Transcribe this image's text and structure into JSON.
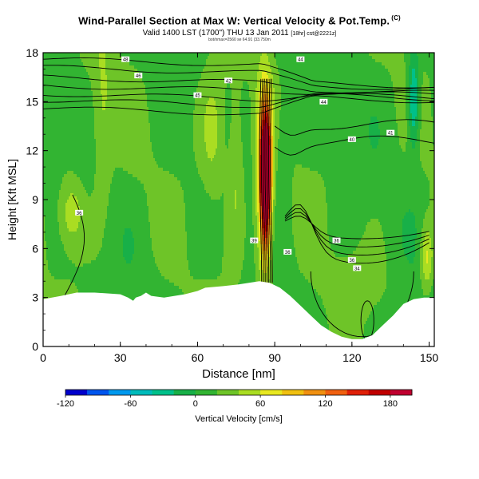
{
  "header": {
    "title": "Wind-Parallel Section at Max W: Vertical Velocity & Pot.Temp.",
    "copyright": "(C)",
    "subtitle_main": "Valid 1400 LST (1700\") THU 13 Jan 2011",
    "subtitle_extra": "[18hr] cst@2221z]",
    "subtitle_small": "bot/nmax=2560 se 64.91 (33.750m"
  },
  "chart_data": {
    "type": "heatmap",
    "title": "Wind-Parallel Section at Max W: Vertical Velocity & Pot.Temp.",
    "xlabel": "Distance [nm]",
    "ylabel": "Height [Kft MSL]",
    "xlim": [
      0,
      152
    ],
    "ylim": [
      0,
      18
    ],
    "xticks": [
      0,
      30,
      60,
      90,
      120,
      150
    ],
    "yticks": [
      0,
      3,
      6,
      9,
      12,
      15,
      18
    ],
    "xtick_labels": [
      "0",
      "30",
      "60",
      "90",
      "120",
      "150"
    ],
    "ytick_labels": [
      "0",
      "3",
      "6",
      "9",
      "12",
      "15",
      "18"
    ],
    "colorbar": {
      "label": "Vertical Velocity [cm/s]",
      "min": -120,
      "max": 200,
      "step": 20,
      "tick_values": [
        -120,
        -60,
        0,
        60,
        120,
        180
      ],
      "tick_labels": [
        "-120",
        "-60",
        "0",
        "60",
        "120",
        "180"
      ],
      "colors": [
        "#0000cc",
        "#0055ee",
        "#0099ee",
        "#00bbbb",
        "#00c08a",
        "#18b048",
        "#32b432",
        "#6ec428",
        "#aadd22",
        "#e8e820",
        "#f0c010",
        "#f09010",
        "#f06010",
        "#e02008",
        "#c00000",
        "#c00030"
      ]
    },
    "terrain": {
      "x": [
        0,
        7,
        13,
        20,
        30,
        33,
        35,
        36,
        38,
        40,
        42,
        47,
        55,
        60,
        63,
        70,
        76,
        80,
        84,
        88,
        92,
        96,
        100,
        104,
        108,
        112,
        116,
        120,
        124,
        128,
        132,
        136,
        140,
        144,
        148,
        152
      ],
      "height": [
        2.9,
        3.1,
        3.3,
        3.3,
        3.2,
        3.0,
        2.8,
        3.0,
        3.1,
        3.3,
        3.1,
        3.0,
        3.2,
        3.4,
        3.6,
        3.7,
        3.8,
        3.9,
        4.0,
        3.9,
        3.6,
        3.1,
        2.5,
        1.9,
        1.3,
        0.9,
        0.6,
        0.45,
        0.45,
        0.7,
        1.3,
        1.9,
        2.6,
        2.9,
        3.0,
        3.0
      ]
    },
    "contour_labels": [
      {
        "text": "48",
        "x": 32,
        "y": 17.6
      },
      {
        "text": "46",
        "x": 37,
        "y": 16.6
      },
      {
        "text": "45",
        "x": 60,
        "y": 15.4
      },
      {
        "text": "44",
        "x": 109,
        "y": 15.0
      },
      {
        "text": "44",
        "x": 100,
        "y": 17.6
      },
      {
        "text": "42",
        "x": 72,
        "y": 16.3
      },
      {
        "text": "41",
        "x": 135,
        "y": 13.1
      },
      {
        "text": "40",
        "x": 120,
        "y": 12.7
      },
      {
        "text": "36",
        "x": 14,
        "y": 8.2
      },
      {
        "text": "39",
        "x": 82,
        "y": 6.5
      },
      {
        "text": "36",
        "x": 95,
        "y": 5.8
      },
      {
        "text": "36",
        "x": 120,
        "y": 5.3
      },
      {
        "text": "36",
        "x": 114,
        "y": 6.5
      },
      {
        "text": "34",
        "x": 122,
        "y": 4.8
      }
    ]
  }
}
